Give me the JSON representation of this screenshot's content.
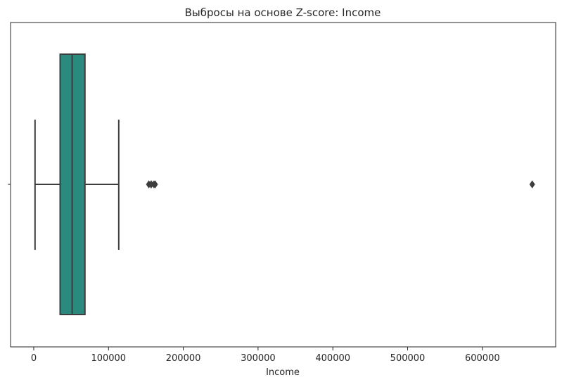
{
  "chart_data": {
    "type": "box",
    "orientation": "horizontal",
    "title": "Выбросы на основе Z-score: Income",
    "xlabel": "Income",
    "ylabel": "",
    "xlim": [
      -31000,
      698000
    ],
    "xticks": [
      0,
      100000,
      200000,
      300000,
      400000,
      500000,
      600000
    ],
    "xtick_labels": [
      "0",
      "100000",
      "200000",
      "300000",
      "400000",
      "500000",
      "600000"
    ],
    "box": {
      "whisker_low": 1730,
      "q1": 35300,
      "median": 51400,
      "q3": 68500,
      "whisker_high": 113700
    },
    "outliers": [
      153900,
      156900,
      157200,
      160800,
      162400,
      666666
    ],
    "box_color": "#2a8a7d",
    "line_color": "#3d3d3d"
  }
}
